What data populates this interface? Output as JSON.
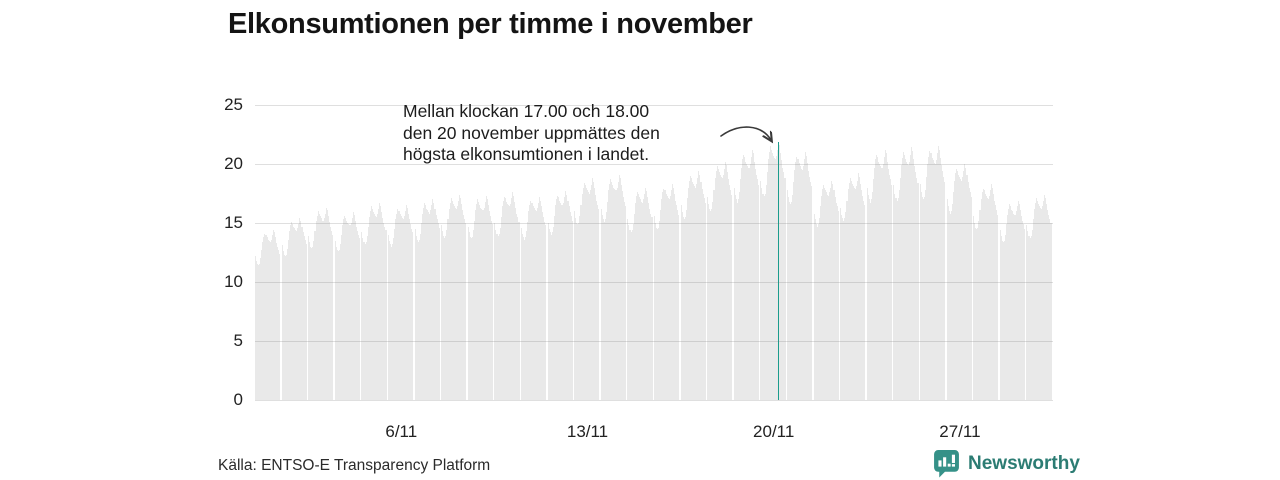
{
  "title": "Elkonsumtionen per timme i november",
  "annotation": {
    "lines": [
      "Mellan klockan 17.00 och 18.00",
      "den 20 november uppmättes den",
      "högsta elkonsumtionen i landet."
    ]
  },
  "source": "Källa: ENTSO-E Transparency Platform",
  "brand": {
    "name": "Newsworthy",
    "icon": "bar-chart-speech-bubble",
    "color": "#2c7c73"
  },
  "colors": {
    "bar": "#e9e9e9",
    "highlight_bar": "#1b9c8c",
    "gridline": "#d9d9d9",
    "text": "#1a1a1a",
    "background": "#ffffff"
  },
  "chart_data": {
    "type": "bar",
    "title": "Elkonsumtionen per timme i november",
    "xlabel": "",
    "ylabel": "",
    "grid": true,
    "legend_position": "none",
    "ylim": [
      0,
      25
    ],
    "yticks": [
      0,
      5,
      10,
      15,
      20,
      25
    ],
    "x_tick_labels": [
      "6/11",
      "13/11",
      "20/11",
      "27/11"
    ],
    "x_tick_days": [
      6,
      13,
      20,
      27
    ],
    "days_in_month": 30,
    "hours_per_day": 24,
    "daily_peaks": [
      14.4,
      15.4,
      16.3,
      15.9,
      16.7,
      16.5,
      17.0,
      17.4,
      17.3,
      17.6,
      17.2,
      17.7,
      18.8,
      19.1,
      18.0,
      18.3,
      19.4,
      20.2,
      21.2,
      21.9,
      21.0,
      18.6,
      19.2,
      21.2,
      21.4,
      21.5,
      20.0,
      18.3,
      16.9,
      17.4
    ],
    "hourly_profile": [
      0.85,
      0.82,
      0.8,
      0.79,
      0.8,
      0.83,
      0.88,
      0.93,
      0.96,
      0.98,
      0.97,
      0.955,
      0.945,
      0.935,
      0.93,
      0.945,
      0.97,
      1.0,
      0.985,
      0.955,
      0.925,
      0.9,
      0.88,
      0.86
    ],
    "highlight": {
      "day": 20,
      "hour_start": 17,
      "hour_end": 18,
      "value": 21.9
    }
  }
}
